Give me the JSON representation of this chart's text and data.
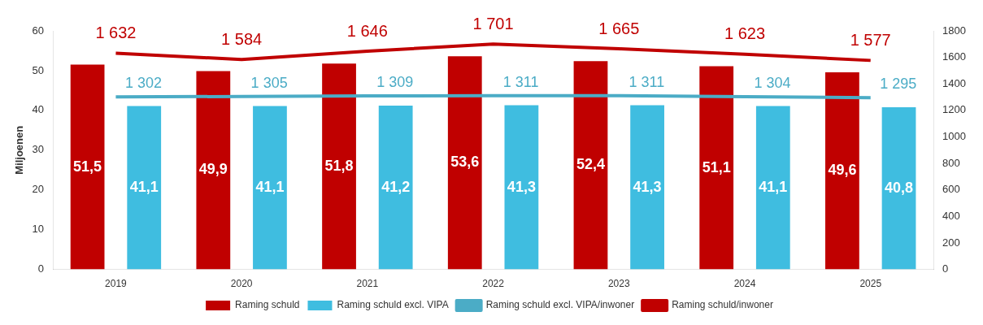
{
  "chart_data": {
    "type": "bar",
    "categories": [
      "2019",
      "2020",
      "2021",
      "2022",
      "2023",
      "2024",
      "2025"
    ],
    "ylabel": "Miljoenen",
    "ylim": [
      0,
      60
    ],
    "yticks": [
      0,
      10,
      20,
      30,
      40,
      50,
      60
    ],
    "y2lim": [
      0,
      1800
    ],
    "y2ticks": [
      0,
      200,
      400,
      600,
      800,
      1000,
      1200,
      1400,
      1600,
      1800
    ],
    "grid": false,
    "legend": "bottom",
    "marker": "none",
    "line_style": "solid",
    "series": [
      {
        "name": "Raming schuld",
        "color": "#c00000",
        "values": [
          51.5,
          49.9,
          51.8,
          53.6,
          52.4,
          51.1,
          49.6
        ],
        "value_labels": [
          "51,5",
          "49,9",
          "51,8",
          "53,6",
          "52,4",
          "51,1",
          "49,6"
        ]
      },
      {
        "name": "Raming schuld excl. VIPA",
        "color": "#3fbde0",
        "values": [
          41.1,
          41.1,
          41.2,
          41.3,
          41.3,
          41.1,
          40.8
        ],
        "value_labels": [
          "41,1",
          "41,1",
          "41,2",
          "41,3",
          "41,3",
          "41,1",
          "40,8"
        ]
      },
      {
        "name": "Raming schuld excl. VIPA/inwoner",
        "type": "line",
        "axis": "y2",
        "color": "#4bacc6",
        "values": [
          1302,
          1305,
          1309,
          1311,
          1311,
          1304,
          1295
        ],
        "value_labels": [
          "1 302",
          "1 305",
          "1 309",
          "1 311",
          "1 311",
          "1 304",
          "1 295"
        ]
      },
      {
        "name": "Raming schuld/inwoner",
        "type": "line",
        "axis": "y2",
        "color": "#c00000",
        "values": [
          1632,
          1584,
          1646,
          1701,
          1665,
          1623,
          1577
        ],
        "value_labels": [
          "1 632",
          "1 584",
          "1 646",
          "1 701",
          "1 665",
          "1 623",
          "1 577"
        ]
      }
    ]
  }
}
